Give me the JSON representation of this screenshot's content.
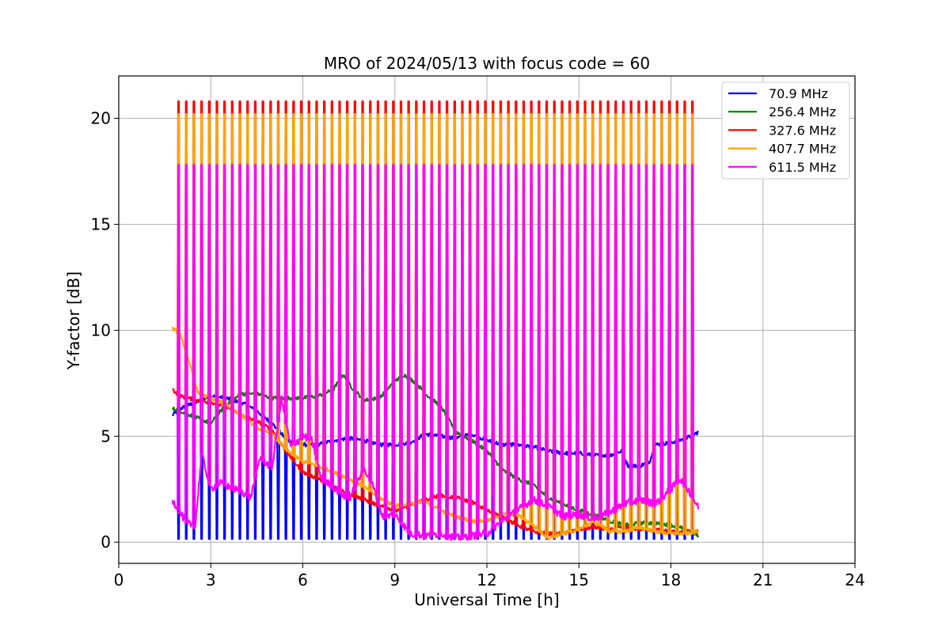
{
  "chart_data": {
    "type": "line",
    "title": "MRO of 2024/05/13 with focus code = 60",
    "xlabel": "Universal Time [h]",
    "ylabel": "Y-factor [dB]",
    "xlim": [
      0,
      24
    ],
    "ylim": [
      -1,
      22
    ],
    "xticks": [
      "0",
      "3",
      "6",
      "9",
      "12",
      "15",
      "18",
      "21",
      "24"
    ],
    "yticks": [
      "0",
      "5",
      "10",
      "15",
      "20"
    ],
    "grid": true,
    "legend_position": "top-right",
    "pulse_times_h": [
      1.95,
      2.2,
      2.45,
      2.7,
      2.95,
      3.2,
      3.45,
      3.7,
      3.95,
      4.2,
      4.45,
      4.7,
      4.95,
      5.2,
      5.45,
      5.7,
      5.95,
      6.2,
      6.45,
      6.7,
      6.95,
      7.2,
      7.45,
      7.7,
      7.95,
      8.2,
      8.45,
      8.7,
      8.95,
      9.2,
      9.45,
      9.7,
      9.95,
      10.2,
      10.45,
      10.7,
      10.95,
      11.2,
      11.45,
      11.7,
      11.95,
      12.2,
      12.45,
      12.7,
      12.95,
      13.2,
      13.45,
      13.7,
      13.95,
      14.2,
      14.45,
      14.7,
      14.95,
      15.2,
      15.45,
      15.7,
      15.95,
      16.2,
      16.45,
      16.7,
      16.95,
      17.2,
      17.45,
      17.7,
      17.95,
      18.2,
      18.45,
      18.7
    ],
    "series": [
      {
        "name": " 70.9 MHz",
        "color": "#0000ff",
        "pulse_dB": null,
        "pulse_low_dB": 0.15,
        "baseline": [
          [
            1.75,
            6.0
          ],
          [
            2.0,
            6.3
          ],
          [
            2.5,
            6.6
          ],
          [
            3.0,
            6.9
          ],
          [
            3.5,
            6.8
          ],
          [
            4.0,
            6.6
          ],
          [
            4.5,
            6.2
          ],
          [
            5.0,
            5.6
          ],
          [
            5.5,
            4.8
          ],
          [
            6.0,
            4.6
          ],
          [
            6.5,
            4.6
          ],
          [
            7.0,
            4.8
          ],
          [
            7.5,
            4.9
          ],
          [
            8.0,
            4.8
          ],
          [
            8.5,
            4.6
          ],
          [
            9.0,
            4.6
          ],
          [
            9.5,
            4.7
          ],
          [
            10.0,
            5.1
          ],
          [
            10.5,
            5.0
          ],
          [
            11.0,
            4.9
          ],
          [
            11.5,
            5.1
          ],
          [
            12.0,
            4.8
          ],
          [
            12.5,
            4.6
          ],
          [
            13.0,
            4.6
          ],
          [
            13.5,
            4.5
          ],
          [
            14.0,
            4.3
          ],
          [
            14.5,
            4.2
          ],
          [
            15.0,
            4.2
          ],
          [
            15.5,
            4.1
          ],
          [
            16.0,
            4.1
          ],
          [
            16.4,
            4.3
          ],
          [
            16.6,
            3.6
          ],
          [
            17.0,
            3.6
          ],
          [
            17.3,
            3.8
          ],
          [
            17.5,
            4.6
          ],
          [
            18.0,
            4.7
          ],
          [
            18.5,
            4.9
          ],
          [
            18.9,
            5.2
          ]
        ]
      },
      {
        "name": "256.4 MHz",
        "color": "#008000",
        "pulse_dB": null,
        "pulse_low_dB": null,
        "baseline": [
          [
            1.75,
            6.3
          ],
          [
            2.0,
            6.2
          ],
          [
            2.5,
            5.9
          ],
          [
            3.0,
            5.6
          ],
          [
            3.5,
            6.5
          ],
          [
            4.0,
            7.0
          ],
          [
            4.5,
            7.0
          ],
          [
            5.0,
            6.8
          ],
          [
            5.5,
            6.8
          ],
          [
            6.0,
            6.8
          ],
          [
            6.5,
            6.9
          ],
          [
            7.0,
            7.2
          ],
          [
            7.3,
            7.9
          ],
          [
            7.6,
            7.3
          ],
          [
            8.0,
            6.7
          ],
          [
            8.5,
            6.8
          ],
          [
            9.0,
            7.6
          ],
          [
            9.3,
            7.9
          ],
          [
            9.7,
            7.5
          ],
          [
            10.0,
            7.0
          ],
          [
            10.5,
            6.4
          ],
          [
            11.0,
            5.2
          ],
          [
            11.5,
            4.8
          ],
          [
            12.0,
            4.3
          ],
          [
            12.3,
            3.8
          ],
          [
            12.5,
            3.4
          ],
          [
            13.0,
            3.0
          ],
          [
            13.5,
            2.7
          ],
          [
            14.0,
            2.1
          ],
          [
            14.5,
            1.8
          ],
          [
            15.0,
            1.5
          ],
          [
            15.5,
            1.3
          ],
          [
            16.0,
            1.0
          ],
          [
            16.5,
            0.8
          ],
          [
            17.0,
            0.9
          ],
          [
            17.5,
            0.9
          ],
          [
            18.0,
            0.8
          ],
          [
            18.5,
            0.6
          ],
          [
            18.9,
            0.3
          ]
        ]
      },
      {
        "name": "327.6 MHz",
        "color": "#ff0000",
        "pulse_dB": 20.8,
        "pulse_low_dB": null,
        "baseline": [
          [
            1.75,
            7.2
          ],
          [
            2.0,
            6.9
          ],
          [
            2.5,
            6.7
          ],
          [
            3.0,
            6.6
          ],
          [
            3.5,
            6.4
          ],
          [
            4.0,
            6.0
          ],
          [
            4.5,
            5.7
          ],
          [
            5.0,
            5.3
          ],
          [
            5.5,
            4.2
          ],
          [
            6.0,
            3.3
          ],
          [
            6.5,
            3.0
          ],
          [
            7.0,
            2.6
          ],
          [
            7.5,
            2.3
          ],
          [
            8.0,
            2.0
          ],
          [
            8.5,
            1.7
          ],
          [
            9.0,
            1.5
          ],
          [
            9.5,
            1.7
          ],
          [
            10.0,
            2.0
          ],
          [
            10.5,
            2.2
          ],
          [
            11.0,
            2.1
          ],
          [
            11.5,
            1.9
          ],
          [
            12.0,
            1.5
          ],
          [
            12.5,
            1.2
          ],
          [
            13.0,
            0.8
          ],
          [
            13.5,
            0.5
          ],
          [
            14.0,
            0.4
          ],
          [
            14.5,
            0.4
          ],
          [
            15.0,
            0.6
          ],
          [
            15.5,
            0.7
          ],
          [
            16.0,
            0.6
          ],
          [
            16.5,
            0.7
          ],
          [
            17.0,
            0.6
          ],
          [
            17.5,
            0.6
          ],
          [
            18.0,
            0.5
          ],
          [
            18.5,
            0.5
          ],
          [
            18.9,
            0.5
          ]
        ]
      },
      {
        "name": "407.7 MHz",
        "color": "#ffa500",
        "pulse_dB": 20.2,
        "pulse_low_dB": null,
        "baseline": [
          [
            1.75,
            10.1
          ],
          [
            2.0,
            9.8
          ],
          [
            2.3,
            8.5
          ],
          [
            2.6,
            7.0
          ],
          [
            3.0,
            6.8
          ],
          [
            3.5,
            6.5
          ],
          [
            4.0,
            6.0
          ],
          [
            4.5,
            5.4
          ],
          [
            5.0,
            5.1
          ],
          [
            5.5,
            4.3
          ],
          [
            6.0,
            3.8
          ],
          [
            6.5,
            3.6
          ],
          [
            7.0,
            3.3
          ],
          [
            7.5,
            3.0
          ],
          [
            8.0,
            2.6
          ],
          [
            8.5,
            2.1
          ],
          [
            9.0,
            1.7
          ],
          [
            9.5,
            1.8
          ],
          [
            10.0,
            1.9
          ],
          [
            10.5,
            1.5
          ],
          [
            11.0,
            1.2
          ],
          [
            11.5,
            1.0
          ],
          [
            12.0,
            1.0
          ],
          [
            12.5,
            1.3
          ],
          [
            13.0,
            1.3
          ],
          [
            13.5,
            0.8
          ],
          [
            14.0,
            0.2
          ],
          [
            14.5,
            0.4
          ],
          [
            15.0,
            0.6
          ],
          [
            15.5,
            1.0
          ],
          [
            16.0,
            0.5
          ],
          [
            16.5,
            0.5
          ],
          [
            17.0,
            0.7
          ],
          [
            17.5,
            0.5
          ],
          [
            18.0,
            0.4
          ],
          [
            18.5,
            0.4
          ],
          [
            18.9,
            0.5
          ]
        ]
      },
      {
        "name": "611.5 MHz",
        "color": "#ff00ff",
        "pulse_dB": 17.8,
        "pulse_low_dB": null,
        "baseline": [
          [
            1.75,
            2.0
          ],
          [
            2.0,
            1.4
          ],
          [
            2.2,
            0.9
          ],
          [
            2.5,
            0.8
          ],
          [
            2.7,
            4.2
          ],
          [
            3.0,
            2.5
          ],
          [
            3.3,
            2.8
          ],
          [
            3.6,
            2.6
          ],
          [
            4.0,
            2.4
          ],
          [
            4.3,
            2.1
          ],
          [
            4.6,
            4.0
          ],
          [
            5.0,
            3.5
          ],
          [
            5.3,
            6.8
          ],
          [
            5.6,
            4.5
          ],
          [
            6.0,
            5.0
          ],
          [
            6.3,
            4.8
          ],
          [
            6.6,
            3.0
          ],
          [
            7.0,
            2.6
          ],
          [
            7.5,
            2.0
          ],
          [
            8.0,
            3.5
          ],
          [
            8.3,
            2.6
          ],
          [
            8.6,
            1.2
          ],
          [
            9.0,
            1.3
          ],
          [
            9.5,
            0.4
          ],
          [
            10.0,
            0.3
          ],
          [
            10.5,
            0.4
          ],
          [
            11.0,
            0.2
          ],
          [
            11.5,
            0.3
          ],
          [
            12.0,
            0.4
          ],
          [
            12.5,
            1.0
          ],
          [
            13.0,
            1.5
          ],
          [
            13.5,
            2.0
          ],
          [
            14.0,
            1.7
          ],
          [
            14.5,
            1.2
          ],
          [
            15.0,
            1.3
          ],
          [
            15.5,
            1.1
          ],
          [
            16.0,
            1.4
          ],
          [
            16.5,
            1.8
          ],
          [
            17.0,
            2.0
          ],
          [
            17.5,
            1.8
          ],
          [
            18.0,
            2.5
          ],
          [
            18.3,
            3.0
          ],
          [
            18.6,
            2.4
          ],
          [
            18.9,
            1.6
          ]
        ]
      }
    ]
  }
}
